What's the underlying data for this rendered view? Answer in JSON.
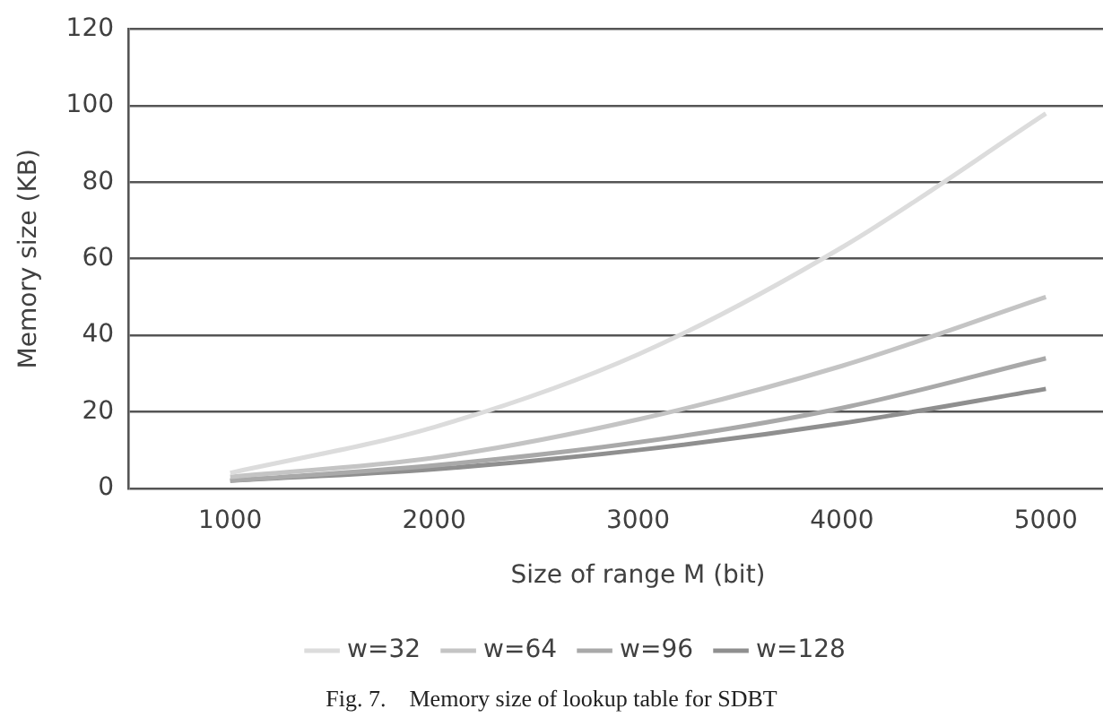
{
  "chart_data": {
    "type": "line",
    "xlabel": "Size of range M (bit)",
    "ylabel": "Memory size (KB)",
    "categories": [
      "1000",
      "2000",
      "3000",
      "4000",
      "5000"
    ],
    "series": [
      {
        "name": "w=32",
        "color": "#dcdcdc",
        "values": [
          4,
          16,
          35,
          63,
          98
        ]
      },
      {
        "name": "w=64",
        "color": "#c4c4c4",
        "values": [
          3,
          8,
          18,
          32,
          50
        ]
      },
      {
        "name": "w=96",
        "color": "#a9a9a9",
        "values": [
          2,
          6,
          12,
          21,
          34
        ]
      },
      {
        "name": "w=128",
        "color": "#8f8f8f",
        "values": [
          2,
          5,
          10,
          17,
          26
        ]
      }
    ],
    "ylim": [
      0,
      120
    ],
    "yticks": [
      0,
      20,
      40,
      60,
      80,
      100,
      120
    ],
    "grid": "y",
    "legend": "bottom",
    "marker": "none",
    "line_style": "solid",
    "annotations": [
      "Fig. 7.    Memory size of lookup table for SDBT"
    ]
  }
}
